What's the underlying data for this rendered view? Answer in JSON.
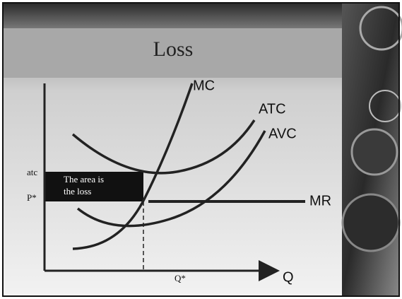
{
  "title": "Loss",
  "curves": {
    "mc": "MC",
    "atc": "ATC",
    "avc": "AVC",
    "mr": "MR"
  },
  "axes": {
    "x": "Q",
    "x_mark": "Q*",
    "y_price": "P*",
    "y_cost": "atc"
  },
  "loss_box": {
    "lines": [
      "The area is",
      "the loss"
    ]
  }
}
